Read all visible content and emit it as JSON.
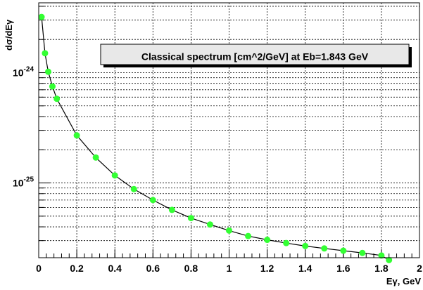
{
  "chart_data": {
    "type": "scatter",
    "title": "Classical spectrum [cm^2/GeV] at Eb=1.843 GeV",
    "xlabel": "Eγ, GeV",
    "ylabel": "dσ/dEγ",
    "x_scale": "linear",
    "y_scale": "log",
    "xlim": [
      0,
      2
    ],
    "ylim": [
      2.1e-26,
      4.3e-24
    ],
    "grid": true,
    "x_ticks": [
      {
        "value": 0,
        "label": "0"
      },
      {
        "value": 0.2,
        "label": "0.2"
      },
      {
        "value": 0.4,
        "label": "0.4"
      },
      {
        "value": 0.6,
        "label": "0.6"
      },
      {
        "value": 0.8,
        "label": "0.8"
      },
      {
        "value": 1.0,
        "label": "1"
      },
      {
        "value": 1.2,
        "label": "1.2"
      },
      {
        "value": 1.4,
        "label": "1.4"
      },
      {
        "value": 1.6,
        "label": "1.6"
      },
      {
        "value": 1.8,
        "label": "1.8"
      },
      {
        "value": 2.0,
        "label": "2"
      }
    ],
    "y_ticks": [
      {
        "value": 1e-25,
        "base": "10",
        "exp": "-25"
      },
      {
        "value": 1e-24,
        "base": "10",
        "exp": "-24"
      }
    ],
    "marker_color": "#33ff33",
    "line_color": "#000000",
    "points": [
      {
        "x": 0.015,
        "y": 3.2e-24
      },
      {
        "x": 0.033,
        "y": 1.5e-24
      },
      {
        "x": 0.05,
        "y": 1.02e-24
      },
      {
        "x": 0.072,
        "y": 7.5e-25
      },
      {
        "x": 0.095,
        "y": 5.8e-25
      },
      {
        "x": 0.2,
        "y": 2.7e-25
      },
      {
        "x": 0.3,
        "y": 1.7e-25
      },
      {
        "x": 0.4,
        "y": 1.17e-25
      },
      {
        "x": 0.5,
        "y": 8.8e-26
      },
      {
        "x": 0.6,
        "y": 7e-26
      },
      {
        "x": 0.7,
        "y": 5.7e-26
      },
      {
        "x": 0.8,
        "y": 4.8e-26
      },
      {
        "x": 0.9,
        "y": 4.2e-26
      },
      {
        "x": 1.0,
        "y": 3.7e-26
      },
      {
        "x": 1.1,
        "y": 3.3e-26
      },
      {
        "x": 1.2,
        "y": 3.05e-26
      },
      {
        "x": 1.3,
        "y": 2.85e-26
      },
      {
        "x": 1.4,
        "y": 2.68e-26
      },
      {
        "x": 1.5,
        "y": 2.55e-26
      },
      {
        "x": 1.6,
        "y": 2.43e-26
      },
      {
        "x": 1.7,
        "y": 2.32e-26
      },
      {
        "x": 1.8,
        "y": 2.2e-26
      },
      {
        "x": 1.84,
        "y": 2e-26
      }
    ]
  }
}
